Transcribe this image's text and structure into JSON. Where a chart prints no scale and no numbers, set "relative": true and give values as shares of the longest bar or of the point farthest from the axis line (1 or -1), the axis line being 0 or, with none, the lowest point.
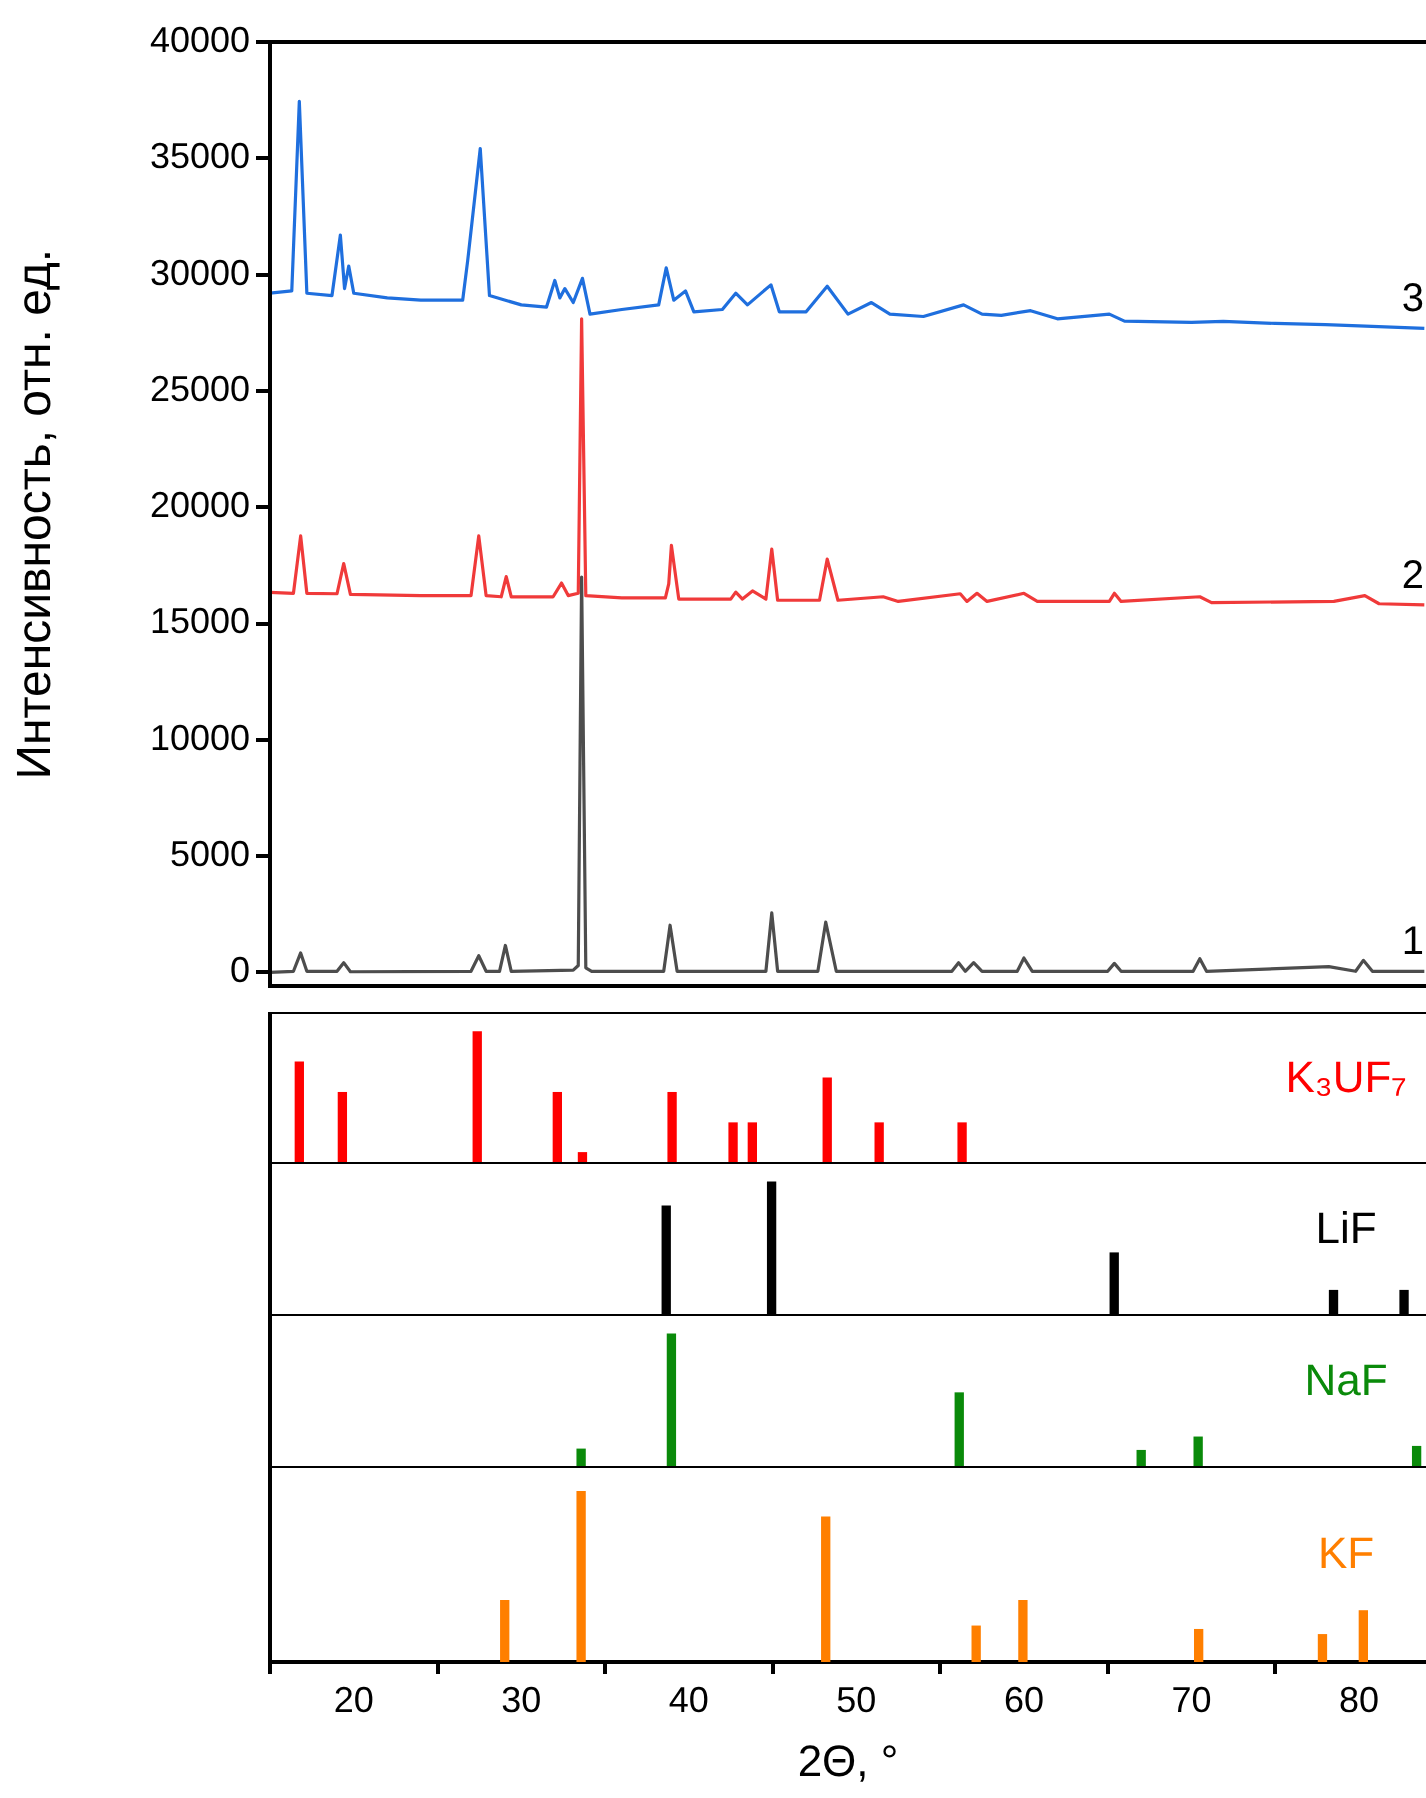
{
  "chart_data": [
    {
      "type": "line",
      "ylabel": "Интенсивность, отн. ед.",
      "xlim": [
        15,
        84
      ],
      "ylim": [
        -600,
        40000
      ],
      "xticks": [
        20,
        30,
        40,
        50,
        60,
        70,
        80
      ],
      "yticks": [
        0,
        5000,
        10000,
        15000,
        20000,
        25000,
        30000,
        35000,
        40000
      ],
      "tick_labels": "y",
      "series": [
        {
          "name": "1",
          "color": "#4d4d4d",
          "x": [
            15,
            16.4,
            16.83,
            17.2,
            19.0,
            19.4,
            19.8,
            27.0,
            27.46,
            27.9,
            28.7,
            29.05,
            29.4,
            33.1,
            33.4,
            33.6,
            33.85,
            34.2,
            38.5,
            38.7,
            38.88,
            39.3,
            44.6,
            44.95,
            45.3,
            47.7,
            48.17,
            48.8,
            55.7,
            56.1,
            56.5,
            57.0,
            57.5,
            59.6,
            60.0,
            60.5,
            65.0,
            65.4,
            65.8,
            70.1,
            70.5,
            70.9,
            78.2,
            79.8,
            80.26,
            80.8,
            83.9
          ],
          "values": [
            0,
            50,
            840,
            50,
            50,
            420,
            30,
            50,
            720,
            50,
            50,
            1160,
            50,
            100,
            300,
            17000,
            200,
            50,
            50,
            1080,
            2030,
            50,
            50,
            2560,
            50,
            50,
            2160,
            50,
            50,
            420,
            50,
            420,
            50,
            50,
            620,
            50,
            50,
            390,
            50,
            50,
            590,
            50,
            250,
            50,
            520,
            50,
            50
          ]
        },
        {
          "name": "2",
          "color": "#f03a3a",
          "x": [
            15,
            16.4,
            16.83,
            17.2,
            19.0,
            19.4,
            19.8,
            24,
            27.0,
            27.46,
            27.9,
            28.8,
            29.1,
            29.4,
            31.9,
            32.4,
            32.8,
            33.4,
            33.6,
            33.85,
            36,
            38.6,
            38.8,
            38.96,
            39.4,
            42.5,
            42.8,
            43.2,
            43.8,
            44.6,
            44.95,
            45.3,
            47.8,
            48.26,
            48.9,
            51.6,
            52.5,
            56.2,
            56.6,
            57.2,
            57.8,
            60.0,
            60.8,
            65.1,
            65.4,
            65.8,
            70.5,
            71.2,
            78.5,
            80.35,
            81.2,
            83.9
          ],
          "values": [
            16340,
            16300,
            18770,
            16300,
            16280,
            17580,
            16250,
            16200,
            16200,
            18770,
            16200,
            16150,
            17020,
            16150,
            16150,
            16740,
            16200,
            16300,
            28100,
            16200,
            16100,
            16100,
            16700,
            18360,
            16050,
            16050,
            16350,
            16050,
            16400,
            16050,
            18200,
            16000,
            16000,
            17770,
            16000,
            16150,
            15950,
            16280,
            15950,
            16300,
            15950,
            16300,
            15950,
            15950,
            16300,
            15950,
            16150,
            15900,
            15950,
            16200,
            15850,
            15800
          ]
        },
        {
          "name": "3",
          "color": "#1f6fde",
          "x": [
            15,
            16.3,
            16.75,
            17.2,
            18.7,
            19.2,
            19.45,
            19.7,
            20.0,
            22,
            24,
            26.5,
            26.8,
            27.55,
            28.1,
            30,
            31.5,
            32.0,
            32.3,
            32.6,
            33.1,
            33.65,
            34.1,
            36,
            38.2,
            38.65,
            39.1,
            39.8,
            40.3,
            42,
            42.8,
            43.5,
            44.9,
            45.4,
            47,
            48.26,
            49.5,
            50.9,
            52,
            54,
            56.4,
            57.5,
            58.65,
            60.4,
            62,
            65.1,
            66,
            70,
            71.9,
            75,
            78,
            80,
            83.9
          ],
          "values": [
            29200,
            29300,
            37450,
            29200,
            29100,
            31700,
            29400,
            30370,
            29200,
            29000,
            28900,
            28900,
            30600,
            35420,
            29100,
            28700,
            28600,
            29750,
            29000,
            29400,
            28800,
            29840,
            28300,
            28500,
            28700,
            30290,
            28900,
            29300,
            28400,
            28500,
            29200,
            28700,
            29560,
            28400,
            28400,
            29500,
            28300,
            28800,
            28300,
            28200,
            28700,
            28300,
            28250,
            28450,
            28100,
            28300,
            28000,
            27950,
            27990,
            27900,
            27850,
            27800,
            27690
          ]
        }
      ]
    },
    {
      "type": "bar",
      "relative": true,
      "xlim": [
        15,
        84
      ],
      "tick_labels": false,
      "series": [
        {
          "name": "K₃UF₇",
          "color": "#ff0000",
          "x": [
            16.75,
            19.32,
            27.37,
            32.15,
            33.65,
            39.0,
            42.64,
            43.79,
            48.26,
            51.36,
            56.31
          ],
          "values": [
            0.77,
            0.54,
            1,
            0.54,
            0.085,
            0.54,
            0.31,
            0.31,
            0.65,
            0.31,
            0.31
          ]
        }
      ]
    },
    {
      "type": "bar",
      "relative": true,
      "xlim": [
        15,
        84
      ],
      "tick_labels": false,
      "series": [
        {
          "name": "LiF",
          "color": "#000000",
          "x": [
            38.65,
            44.94,
            65.39,
            78.48,
            82.69
          ],
          "values": [
            0.82,
            1,
            0.47,
            0.19,
            0.19
          ]
        }
      ]
    },
    {
      "type": "bar",
      "relative": true,
      "xlim": [
        15,
        84
      ],
      "tick_labels": false,
      "series": [
        {
          "name": "NaF",
          "color": "#0a8a0a",
          "x": [
            33.57,
            38.96,
            56.14,
            67.0,
            70.4,
            83.44
          ],
          "values": [
            0.14,
            1,
            0.56,
            0.13,
            0.23,
            0.16
          ]
        }
      ]
    },
    {
      "type": "bar",
      "relative": true,
      "xlabel": "2Θ, °",
      "xlim": [
        15,
        84
      ],
      "xticks": [
        20,
        30,
        40,
        50,
        60,
        70,
        80
      ],
      "tick_labels": "x",
      "series": [
        {
          "name": "KF",
          "color": "#ff7f00",
          "x": [
            29.01,
            33.57,
            48.17,
            57.15,
            59.94,
            70.43,
            77.82,
            80.26
          ],
          "values": [
            0.36,
            1,
            0.85,
            0.21,
            0.36,
            0.19,
            0.16,
            0.3
          ]
        }
      ]
    }
  ]
}
